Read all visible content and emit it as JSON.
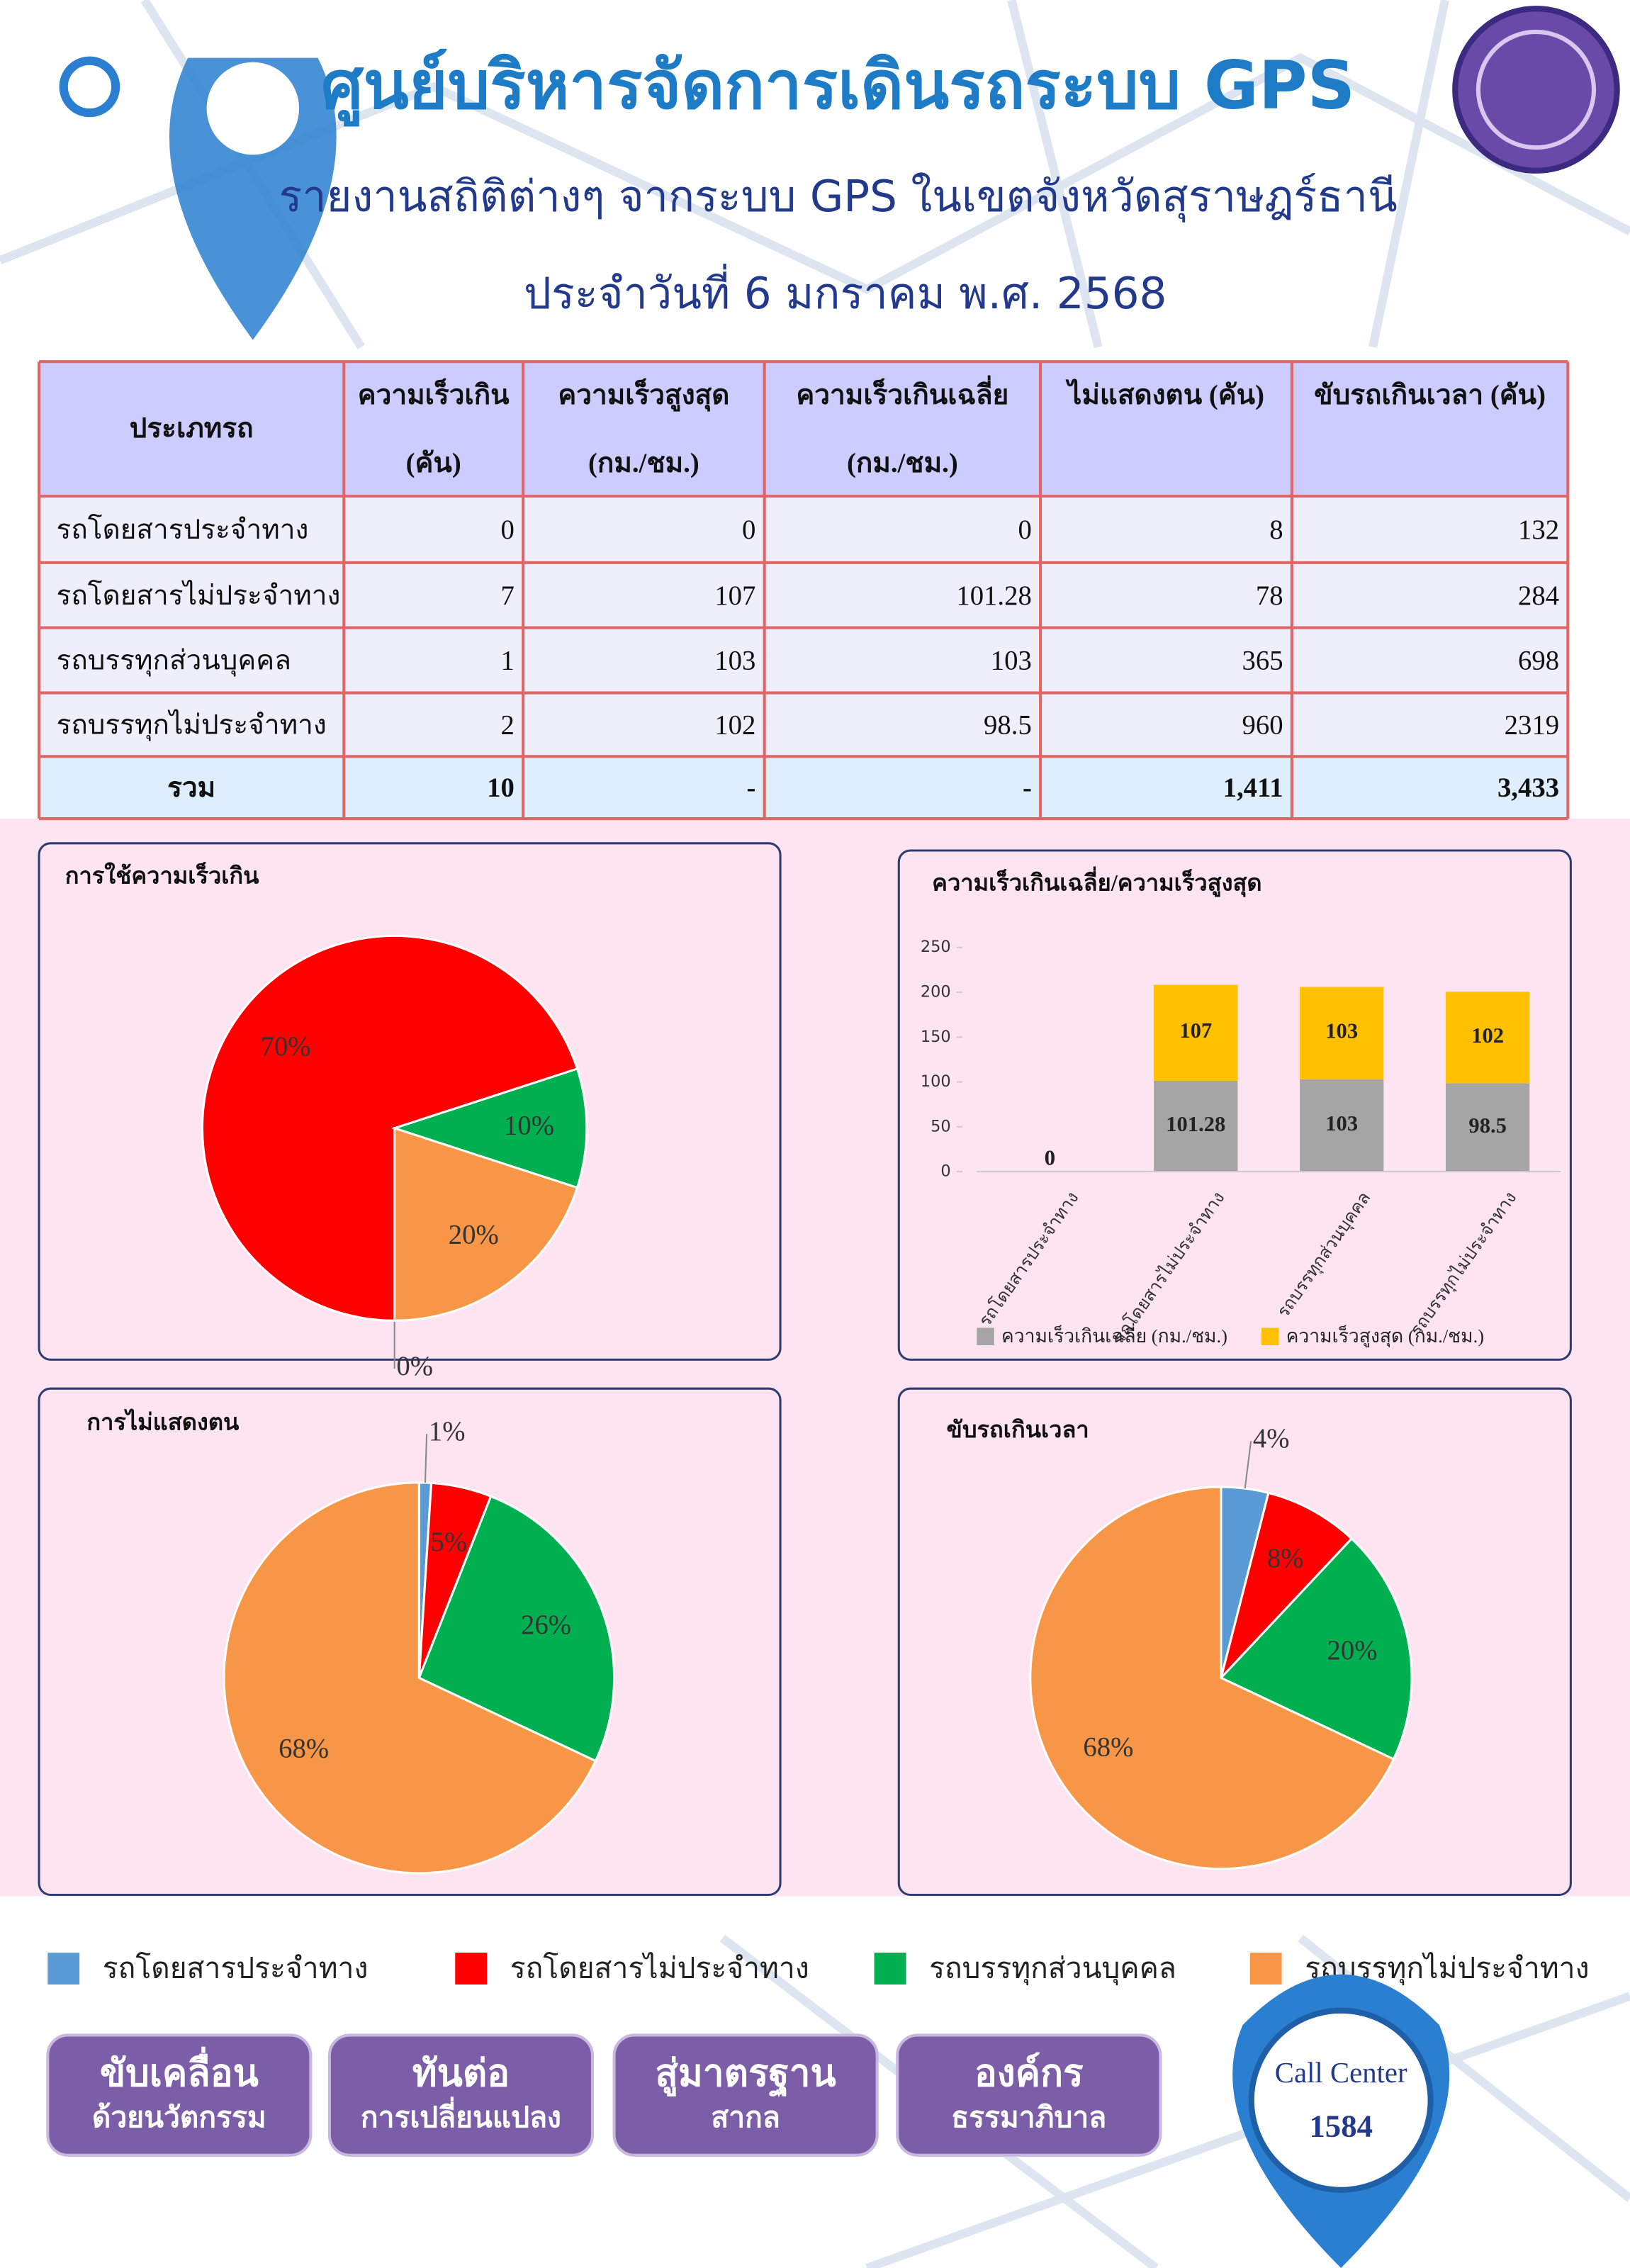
{
  "header": {
    "title": "ศูนย์บริหารจัดการเดินรถระบบ GPS",
    "subtitle": "รายงานสถิติต่างๆ จากระบบ GPS ในเขตจังหวัดสุราษฎร์ธานี",
    "date": "ประจำวันที่ 6 มกราคม พ.ศ. 2568"
  },
  "table": {
    "columns": [
      [
        "ประเภทรถ"
      ],
      [
        "ความเร็วเกิน",
        "(คัน)"
      ],
      [
        "ความเร็วสูงสุด",
        "(กม./ชม.)"
      ],
      [
        "ความเร็วเกินเฉลี่ย",
        "(กม./ชม.)"
      ],
      [
        "ไม่แสดงตน (คัน)"
      ],
      [
        "ขับรถเกินเวลา (คัน)"
      ]
    ],
    "rows": [
      [
        "รถโดยสารประจำทาง",
        0,
        0,
        0,
        8,
        132
      ],
      [
        "รถโดยสารไม่ประจำทาง",
        7,
        107,
        101.28,
        78,
        284
      ],
      [
        "รถบรรทุกส่วนบุคคล",
        1,
        103,
        103,
        365,
        698
      ],
      [
        "รถบรรทุกไม่ประจำทาง",
        2,
        102,
        98.5,
        960,
        2319
      ]
    ],
    "total": [
      "รวม",
      10,
      "-",
      "-",
      "1,411",
      "3,433"
    ]
  },
  "chart_data": [
    {
      "type": "pie",
      "title": "การใช้ความเร็วเกิน",
      "categories": [
        "รถโดยสารประจำทาง",
        "รถโดยสารไม่ประจำทาง",
        "รถบรรทุกส่วนบุคคล",
        "รถบรรทุกไม่ประจำทาง"
      ],
      "values": [
        0,
        70,
        10,
        20
      ],
      "value_labels": [
        "0%",
        "70%",
        "10%",
        "20%"
      ],
      "colors": [
        "#5b9bd5",
        "#ff0000",
        "#00b050",
        "#f79646"
      ]
    },
    {
      "type": "bar",
      "stacked": true,
      "title": "ความเร็วเกินเฉลี่ย/ความเร็วสูงสุด",
      "categories": [
        "รถโดยสารประจำทาง",
        "รถโดยสารไม่ประจำทาง",
        "รถบรรทุกส่วนบุคคล",
        "รถบรรทุกไม่ประจำทาง"
      ],
      "series": [
        {
          "name": "ความเร็วเกินเฉลี่ย (กม./ชม.)",
          "color": "#a5a5a5",
          "values": [
            0,
            101.28,
            103,
            98.5
          ]
        },
        {
          "name": "ความเร็วสูงสุด (กม./ชม.)",
          "color": "#ffc000",
          "values": [
            0,
            107,
            103,
            102
          ]
        }
      ],
      "ylim": [
        0,
        250
      ],
      "yticks": [
        0,
        50,
        100,
        150,
        200,
        250
      ]
    },
    {
      "type": "pie",
      "title": "การไม่แสดงตน",
      "categories": [
        "รถโดยสารประจำทาง",
        "รถโดยสารไม่ประจำทาง",
        "รถบรรทุกส่วนบุคคล",
        "รถบรรทุกไม่ประจำทาง"
      ],
      "values": [
        1,
        5,
        26,
        68
      ],
      "value_labels": [
        "1%",
        "5%",
        "26%",
        "68%"
      ],
      "colors": [
        "#5b9bd5",
        "#ff0000",
        "#00b050",
        "#f79646"
      ]
    },
    {
      "type": "pie",
      "title": "ขับรถเกินเวลา",
      "categories": [
        "รถโดยสารประจำทาง",
        "รถโดยสารไม่ประจำทาง",
        "รถบรรทุกส่วนบุคคล",
        "รถบรรทุกไม่ประจำทาง"
      ],
      "values": [
        4,
        8,
        20,
        68
      ],
      "value_labels": [
        "4%",
        "8%",
        "20%",
        "68%"
      ],
      "colors": [
        "#5b9bd5",
        "#ff0000",
        "#00b050",
        "#f79646"
      ]
    }
  ],
  "buttons": [
    [
      "ขับเคลื่อน",
      "ด้วยนวัตกรรม"
    ],
    [
      "ทันต่อ",
      "การเปลี่ยนแปลง"
    ],
    [
      "สู่มาตรฐาน",
      "สากล"
    ],
    [
      "องค์กร",
      "ธรรมาภิบาล"
    ]
  ],
  "call_center": {
    "label": "Call Center",
    "number": "1584"
  }
}
